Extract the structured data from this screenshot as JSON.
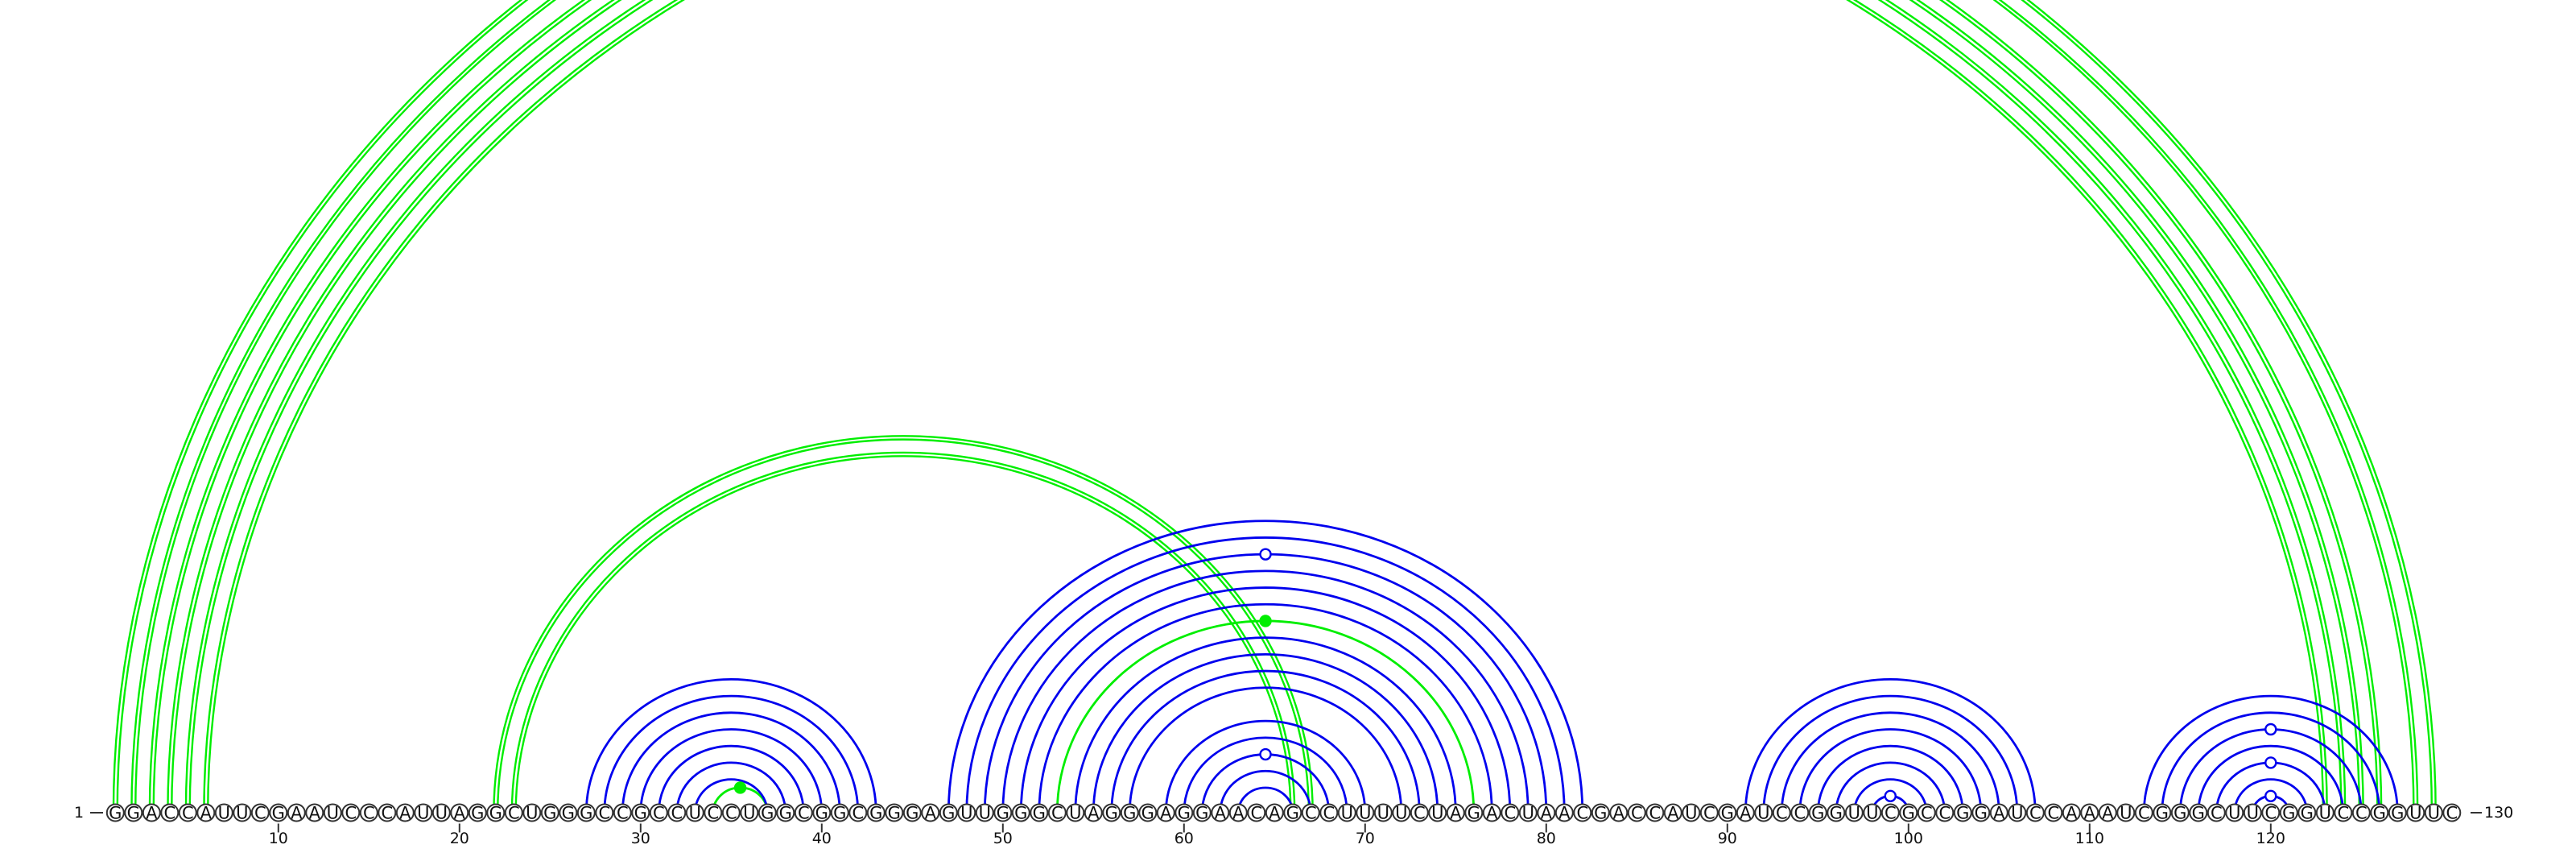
{
  "sequence": "GGACCAUUCGAAUCCCAUUAGGCUGGGCCGCCUCCUGGCGGCGGGAGUUGGGCUAGGGAGGAACAGCCUUUUCUAGACUAACGACCAUCGAUCCGGUUCGCCGGAUCCAAAUCGGGCUUCGGUCCGGUUC",
  "start_label": "1",
  "end_label": "130",
  "ticks": [
    10,
    20,
    30,
    40,
    50,
    60,
    70,
    80,
    90,
    100,
    110,
    120
  ],
  "colors": {
    "primary": "#0000ee",
    "alternate": "#00ee00",
    "marker_fill_blue": "#ffffff",
    "marker_fill_green": "#00ee00"
  },
  "helices": [
    {
      "color": "green",
      "double": true,
      "pairs": [
        [
          1,
          129
        ],
        [
          2,
          128
        ]
      ]
    },
    {
      "color": "green",
      "double": true,
      "pairs": [
        [
          3,
          126
        ],
        [
          4,
          125
        ],
        [
          5,
          124
        ],
        [
          6,
          123
        ]
      ]
    },
    {
      "color": "green",
      "double": true,
      "pairs": [
        [
          22,
          67
        ],
        [
          23,
          66
        ]
      ]
    },
    {
      "color": "green",
      "double": false,
      "pairs": [
        [
          34,
          37
        ]
      ]
    },
    {
      "color": "blue",
      "double": false,
      "pairs": [
        [
          27,
          43
        ],
        [
          28,
          42
        ],
        [
          29,
          41
        ],
        [
          30,
          40
        ],
        [
          31,
          39
        ],
        [
          32,
          38
        ],
        [
          33,
          37
        ]
      ]
    },
    {
      "color": "blue",
      "double": false,
      "pairs": [
        [
          47,
          82
        ],
        [
          48,
          81
        ],
        [
          49,
          80
        ],
        [
          50,
          79
        ],
        [
          51,
          78
        ],
        [
          52,
          77
        ],
        [
          54,
          75
        ],
        [
          55,
          74
        ],
        [
          56,
          73
        ],
        [
          57,
          72
        ]
      ]
    },
    {
      "color": "green",
      "double": false,
      "pairs": [
        [
          53,
          76
        ]
      ]
    },
    {
      "color": "blue",
      "double": false,
      "pairs": [
        [
          59,
          70
        ],
        [
          60,
          69
        ],
        [
          61,
          68
        ],
        [
          62,
          67
        ],
        [
          63,
          66
        ]
      ]
    },
    {
      "color": "blue",
      "double": false,
      "pairs": [
        [
          91,
          107
        ],
        [
          92,
          106
        ],
        [
          93,
          105
        ],
        [
          94,
          104
        ],
        [
          95,
          103
        ],
        [
          96,
          102
        ],
        [
          97,
          101
        ],
        [
          98,
          100
        ]
      ]
    },
    {
      "color": "blue",
      "double": false,
      "pairs": [
        [
          113,
          127
        ],
        [
          114,
          126
        ],
        [
          115,
          125
        ],
        [
          116,
          124
        ],
        [
          117,
          123
        ],
        [
          118,
          122
        ],
        [
          119,
          121
        ]
      ]
    }
  ],
  "markers": [
    {
      "pair": [
        1,
        129
      ],
      "style": "open",
      "color": "green"
    },
    {
      "pair": [
        34,
        37
      ],
      "style": "filled",
      "color": "green"
    },
    {
      "pair": [
        53,
        76
      ],
      "style": "filled",
      "color": "green"
    },
    {
      "pair": [
        49,
        80
      ],
      "style": "open",
      "color": "blue"
    },
    {
      "pair": [
        61,
        68
      ],
      "style": "open",
      "color": "blue"
    },
    {
      "pair": [
        98,
        100
      ],
      "style": "open",
      "color": "blue"
    },
    {
      "pair": [
        115,
        125
      ],
      "style": "open",
      "color": "blue"
    },
    {
      "pair": [
        117,
        123
      ],
      "style": "open",
      "color": "blue"
    },
    {
      "pair": [
        119,
        121
      ],
      "style": "open",
      "color": "blue"
    }
  ]
}
